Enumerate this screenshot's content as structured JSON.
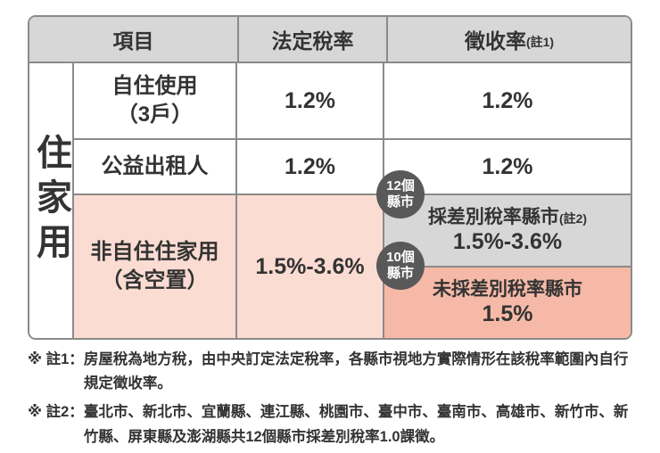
{
  "ui": {
    "header": {
      "item": "項目",
      "statutory": "法定稅率",
      "collection": "徵收率",
      "collection_note": "(註1)"
    },
    "category": "住家用",
    "rows": {
      "r1": {
        "label_line1": "自住使用",
        "label_line2": "（3戶）",
        "statutory": "1.2%",
        "collection": "1.2%"
      },
      "r2": {
        "label": "公益出租人",
        "statutory": "1.2%",
        "collection": "1.2%"
      },
      "r3": {
        "label_line1": "非自住住家用",
        "label_line2": "（含空置）",
        "statutory": "1.5%-3.6%",
        "diff": {
          "badge_line1": "12個",
          "badge_line2": "縣市",
          "title": "採差別稅率縣市",
          "title_note": "(註2)",
          "value": "1.5%-3.6%"
        },
        "nondiff": {
          "badge_line1": "10個",
          "badge_line2": "縣市",
          "title": "未採差別稅率縣市",
          "value": "1.5%"
        }
      }
    },
    "notes": {
      "n1_marker": "※ 註1：",
      "n1_text": "房屋稅為地方稅，由中央訂定法定稅率，各縣市視地方實際情形在該稅率範圍內自行規定徵收率。",
      "n2_marker": "※ 註2：",
      "n2_text": "臺北市、新北市、宜蘭縣、連江縣、桃園市、臺中市、臺南市、高雄市、新竹市、新竹縣、屏東縣及澎湖縣共12個縣市採差別稅率1.0課徵。"
    }
  },
  "colors": {
    "header_gray": "#d7d7d7",
    "pink_light": "#fbdcd2",
    "pink_deep": "#f6b9a8",
    "badge_gray": "#595959",
    "border_gray": "#8a8a8a",
    "text": "#333333"
  },
  "chart_data": {
    "type": "table",
    "columns": [
      "項目",
      "法定稅率",
      "徵收率(註1)"
    ],
    "row_group": "住家用",
    "rows": [
      {
        "item": "自住使用（3戶）",
        "statutory_rate": "1.2%",
        "collection_rate": "1.2%"
      },
      {
        "item": "公益出租人",
        "statutory_rate": "1.2%",
        "collection_rate": "1.2%"
      },
      {
        "item": "非自住住家用（含空置）",
        "statutory_rate": "1.5%-3.6%",
        "collection_rate": [
          {
            "group": "採差別稅率縣市(註2)",
            "county_count": "12個縣市",
            "rate": "1.5%-3.6%"
          },
          {
            "group": "未採差別稅率縣市",
            "county_count": "10個縣市",
            "rate": "1.5%"
          }
        ]
      }
    ],
    "footnotes": [
      "※ 註1：房屋稅為地方稅，由中央訂定法定稅率，各縣市視地方實際情形在該稅率範圍內自行規定徵收率。",
      "※ 註2：臺北市、新北市、宜蘭縣、連江縣、桃園市、臺中市、臺南市、高雄市、新竹市、新竹縣、屏東縣及澎湖縣共12個縣市採差別稅率1.0課徵。"
    ]
  }
}
